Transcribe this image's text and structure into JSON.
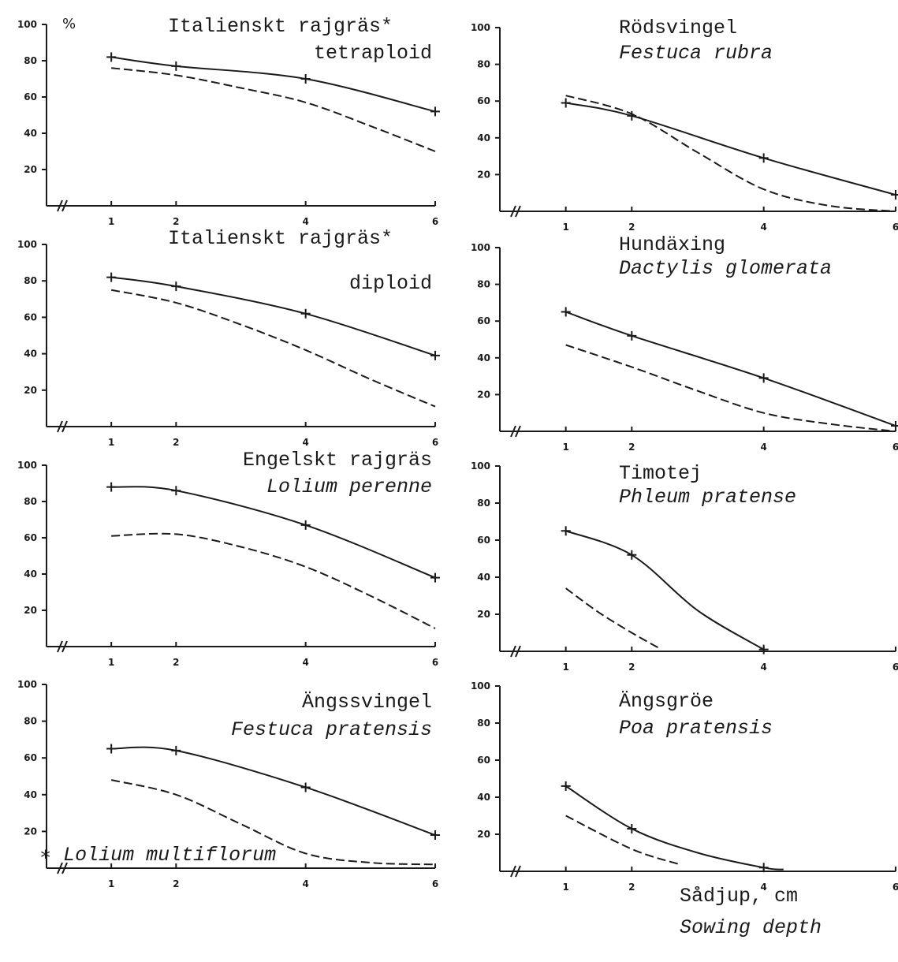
{
  "footnote": {
    "star": "∗",
    "text": "Lolium multiflorum"
  },
  "xaxis_caption": {
    "line1": "Sådjup, cm",
    "line2": "Sowing depth"
  },
  "chart_data": [
    {
      "type": "line",
      "title": "Italienskt rajgräs*",
      "subtitle": "tetraploid",
      "ylabel": "%",
      "x_ticks": [
        1,
        2,
        4,
        6
      ],
      "y_ticks": [
        20,
        40,
        60,
        80,
        100
      ],
      "xlim": [
        0,
        6
      ],
      "ylim": [
        0,
        100
      ],
      "grid": false,
      "series": [
        {
          "style": "solid",
          "markers": true,
          "x": [
            1,
            2,
            4,
            6
          ],
          "y": [
            82,
            77,
            70,
            52
          ]
        },
        {
          "style": "dashed",
          "markers": false,
          "x": [
            1,
            2,
            3,
            4,
            5,
            6
          ],
          "y": [
            76,
            72,
            65,
            57,
            44,
            30
          ]
        }
      ]
    },
    {
      "type": "line",
      "title": "Rödsvingel",
      "subtitle": "Festuca rubra",
      "x_ticks": [
        1,
        2,
        4,
        6
      ],
      "y_ticks": [
        20,
        40,
        60,
        80,
        100
      ],
      "xlim": [
        0,
        6
      ],
      "ylim": [
        0,
        100
      ],
      "grid": false,
      "series": [
        {
          "style": "solid",
          "markers": true,
          "x": [
            1,
            2,
            4,
            6
          ],
          "y": [
            59,
            52,
            29,
            9
          ]
        },
        {
          "style": "dashed",
          "markers": false,
          "x": [
            1,
            2,
            3,
            4,
            5,
            6
          ],
          "y": [
            63,
            53,
            32,
            12,
            3,
            0
          ]
        }
      ]
    },
    {
      "type": "line",
      "title": "Italienskt rajgräs*",
      "subtitle": "diploid",
      "x_ticks": [
        1,
        2,
        4,
        6
      ],
      "y_ticks": [
        20,
        40,
        60,
        80,
        100
      ],
      "xlim": [
        0,
        6
      ],
      "ylim": [
        0,
        100
      ],
      "grid": false,
      "series": [
        {
          "style": "solid",
          "markers": true,
          "x": [
            1,
            2,
            4,
            6
          ],
          "y": [
            82,
            77,
            62,
            39
          ]
        },
        {
          "style": "dashed",
          "markers": false,
          "x": [
            1,
            2,
            3,
            4,
            5,
            6
          ],
          "y": [
            75,
            68,
            56,
            42,
            26,
            11
          ]
        }
      ]
    },
    {
      "type": "line",
      "title": "Hundäxing",
      "subtitle": "Dactylis glomerata",
      "x_ticks": [
        1,
        2,
        4,
        6
      ],
      "y_ticks": [
        20,
        40,
        60,
        80,
        100
      ],
      "xlim": [
        0,
        6
      ],
      "ylim": [
        0,
        100
      ],
      "grid": false,
      "series": [
        {
          "style": "solid",
          "markers": true,
          "x": [
            1,
            2,
            4,
            6
          ],
          "y": [
            65,
            52,
            29,
            3
          ]
        },
        {
          "style": "dashed",
          "markers": false,
          "x": [
            1,
            2,
            3,
            4,
            5,
            6
          ],
          "y": [
            47,
            35,
            22,
            10,
            4,
            0
          ]
        }
      ]
    },
    {
      "type": "line",
      "title": "Engelskt rajgräs",
      "subtitle": "Lolium perenne",
      "x_ticks": [
        1,
        2,
        4,
        6
      ],
      "y_ticks": [
        20,
        40,
        60,
        80,
        100
      ],
      "xlim": [
        0,
        6
      ],
      "ylim": [
        0,
        100
      ],
      "grid": false,
      "series": [
        {
          "style": "solid",
          "markers": true,
          "x": [
            1,
            2,
            4,
            6
          ],
          "y": [
            88,
            86,
            67,
            38
          ]
        },
        {
          "style": "dashed",
          "markers": false,
          "x": [
            1,
            2,
            3,
            4,
            5,
            6
          ],
          "y": [
            61,
            62,
            55,
            44,
            28,
            10
          ]
        }
      ]
    },
    {
      "type": "line",
      "title": "Timotej",
      "subtitle": "Phleum pratense",
      "x_ticks": [
        1,
        2,
        4,
        6
      ],
      "y_ticks": [
        20,
        40,
        60,
        80,
        100
      ],
      "xlim": [
        0,
        6
      ],
      "ylim": [
        0,
        100
      ],
      "grid": false,
      "series": [
        {
          "style": "solid",
          "markers": true,
          "x": [
            1,
            2,
            3,
            4
          ],
          "y": [
            65,
            52,
            22,
            1
          ]
        },
        {
          "style": "dashed",
          "markers": false,
          "x": [
            1,
            1.5,
            2,
            2.4
          ],
          "y": [
            34,
            21,
            10,
            2
          ]
        }
      ]
    },
    {
      "type": "line",
      "title": "Ängssvingel",
      "subtitle": "Festuca pratensis",
      "x_ticks": [
        1,
        2,
        4,
        6
      ],
      "y_ticks": [
        20,
        40,
        60,
        80,
        100
      ],
      "xlim": [
        0,
        6
      ],
      "ylim": [
        0,
        100
      ],
      "grid": false,
      "series": [
        {
          "style": "solid",
          "markers": true,
          "x": [
            1,
            2,
            4,
            6
          ],
          "y": [
            65,
            64,
            44,
            18
          ]
        },
        {
          "style": "dashed",
          "markers": false,
          "x": [
            1,
            2,
            3,
            4,
            5,
            6
          ],
          "y": [
            48,
            40,
            24,
            8,
            3,
            2
          ]
        }
      ]
    },
    {
      "type": "line",
      "title": "Ängsgröe",
      "subtitle": "Poa pratensis",
      "x_ticks": [
        1,
        2,
        4,
        6
      ],
      "y_ticks": [
        20,
        40,
        60,
        80,
        100
      ],
      "xlim": [
        0,
        6
      ],
      "ylim": [
        0,
        100
      ],
      "grid": false,
      "series": [
        {
          "style": "solid",
          "markers": true,
          "x": [
            1,
            2,
            3,
            4,
            4.3
          ],
          "y": [
            46,
            23,
            10,
            2,
            1
          ]
        },
        {
          "style": "dashed",
          "markers": false,
          "x": [
            1,
            2,
            2.7
          ],
          "y": [
            30,
            12,
            4
          ]
        }
      ]
    }
  ]
}
